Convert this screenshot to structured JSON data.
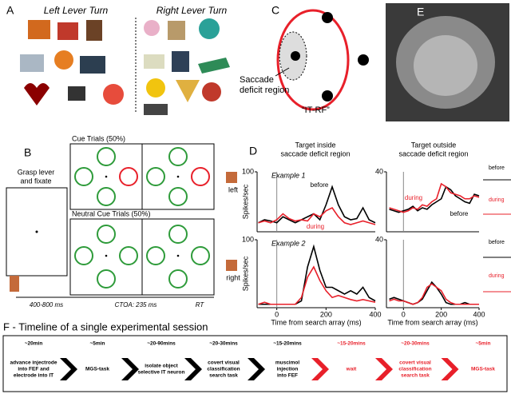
{
  "panels": {
    "A": {
      "label": "A",
      "left_title": "Left  Lever Turn",
      "right_title": "Right  Lever Turn"
    },
    "C": {
      "label": "C",
      "region_lines": [
        "Saccade",
        "deficit region"
      ],
      "rf_label": "“IT-RF”"
    },
    "E": {
      "label": "E"
    },
    "B": {
      "label": "B",
      "start_lines": [
        "Grasp lever",
        "and fixate"
      ],
      "cue_title": "Cue Trials (50%)",
      "neutral_title": "Neutral Cue Trials (50%)",
      "timing": [
        "400-800 ms",
        "CTOA: 235 ms",
        "RT"
      ],
      "responses": [
        "left",
        "right"
      ]
    },
    "D": {
      "label": "D",
      "column_titles": [
        [
          "Target inside",
          "saccade deficit region"
        ],
        [
          "Target outside",
          "saccade deficit region"
        ]
      ],
      "raster_labels": [
        "before",
        "during",
        "before",
        "during"
      ]
    },
    "F": {
      "title": "F - Timeline of a single experimental session",
      "steps": [
        {
          "duration": "~20min",
          "lines": [
            "advance injectrode",
            "into FEF and",
            "electrode into IT"
          ],
          "color": "#000000"
        },
        {
          "duration": "~5min",
          "lines": [
            "MGS-task"
          ],
          "color": "#000000"
        },
        {
          "duration": "~20-90mins",
          "lines": [
            "isolate object",
            "selective IT neuron"
          ],
          "color": "#000000"
        },
        {
          "duration": "~20-30mins",
          "lines": [
            "covert visual",
            "classification",
            "search task"
          ],
          "color": "#000000"
        },
        {
          "duration": "~15-20mins",
          "lines": [
            "muscimol",
            "injection",
            "into FEF"
          ],
          "color": "#000000"
        },
        {
          "duration": "~15-20mins",
          "lines": [
            "wait"
          ],
          "color": "#e8202a"
        },
        {
          "duration": "~20-30mins",
          "lines": [
            "covert visual",
            "classification",
            "search task"
          ],
          "color": "#e8202a"
        },
        {
          "duration": "~5min",
          "lines": [
            "MGS-task"
          ],
          "color": "#e8202a"
        }
      ]
    }
  },
  "chart_data": [
    {
      "type": "line",
      "annotation": "Example 1",
      "ylabel": "Spikes/sec",
      "x": [
        -75,
        -50,
        -25,
        0,
        25,
        50,
        75,
        100,
        125,
        150,
        175,
        200,
        225,
        250,
        275,
        300,
        325,
        350,
        375,
        400
      ],
      "series": [
        {
          "name": "before",
          "color": "#000000",
          "values": [
            15,
            20,
            18,
            15,
            25,
            20,
            15,
            20,
            25,
            30,
            20,
            45,
            75,
            45,
            25,
            20,
            22,
            40,
            20,
            15
          ]
        },
        {
          "name": "during",
          "color": "#e8202a",
          "values": [
            15,
            18,
            15,
            20,
            30,
            22,
            18,
            20,
            18,
            30,
            25,
            35,
            40,
            25,
            15,
            12,
            15,
            18,
            15,
            12
          ]
        }
      ],
      "xlim": [
        -80,
        400
      ],
      "ylim": [
        0,
        100
      ],
      "yticks": [
        100
      ]
    },
    {
      "type": "line",
      "annotation": "Example 2",
      "ylabel": "Spikes/sec",
      "xlabel": "Time from search array (ms)",
      "x": [
        -75,
        -50,
        -25,
        0,
        25,
        50,
        75,
        100,
        125,
        150,
        175,
        200,
        225,
        250,
        275,
        300,
        325,
        350,
        375,
        400
      ],
      "series": [
        {
          "color": "#000000",
          "values": [
            5,
            5,
            5,
            5,
            5,
            5,
            5,
            10,
            60,
            90,
            55,
            30,
            30,
            25,
            20,
            25,
            20,
            30,
            15,
            10
          ]
        },
        {
          "color": "#e8202a",
          "values": [
            5,
            8,
            5,
            5,
            5,
            5,
            5,
            15,
            45,
            60,
            40,
            25,
            15,
            18,
            15,
            12,
            10,
            12,
            10,
            8
          ]
        }
      ],
      "xlim": [
        -80,
        400
      ],
      "ylim": [
        0,
        100
      ],
      "yticks": [
        100
      ],
      "xticks": [
        0,
        200,
        400
      ]
    },
    {
      "type": "line",
      "x": [
        -75,
        -50,
        -25,
        0,
        25,
        50,
        75,
        100,
        125,
        150,
        175,
        200,
        225,
        250,
        275,
        300,
        325,
        350,
        375,
        400
      ],
      "series": [
        {
          "name": "before",
          "color": "#000000",
          "values": [
            15,
            14,
            13,
            14,
            15,
            17,
            14,
            16,
            15,
            18,
            20,
            22,
            30,
            28,
            24,
            22,
            20,
            19,
            25,
            24
          ]
        },
        {
          "name": "during",
          "color": "#e8202a",
          "values": [
            16,
            15,
            14,
            13,
            14,
            16,
            15,
            18,
            17,
            20,
            22,
            32,
            30,
            26,
            25,
            24,
            22,
            22,
            24,
            23
          ]
        }
      ],
      "xlim": [
        -90,
        400
      ],
      "ylim": [
        0,
        40
      ],
      "yticks": [
        40
      ]
    },
    {
      "type": "line",
      "xlabel": "Time from search array (ms)",
      "x": [
        -75,
        -50,
        -25,
        0,
        25,
        50,
        75,
        100,
        125,
        150,
        175,
        200,
        225,
        250,
        275,
        300,
        325,
        350,
        375,
        400
      ],
      "series": [
        {
          "color": "#000000",
          "values": [
            5,
            6,
            5,
            4,
            3,
            2,
            3,
            5,
            10,
            15,
            12,
            8,
            3,
            2,
            2,
            2,
            3,
            2,
            2,
            2
          ]
        },
        {
          "color": "#e8202a",
          "values": [
            4,
            5,
            4,
            4,
            3,
            2,
            3,
            6,
            12,
            14,
            12,
            10,
            5,
            3,
            2,
            2,
            2,
            2,
            2,
            2
          ]
        }
      ],
      "xlim": [
        -90,
        400
      ],
      "ylim": [
        0,
        40
      ],
      "yticks": [
        40
      ],
      "xticks": [
        0,
        200,
        400
      ]
    }
  ]
}
